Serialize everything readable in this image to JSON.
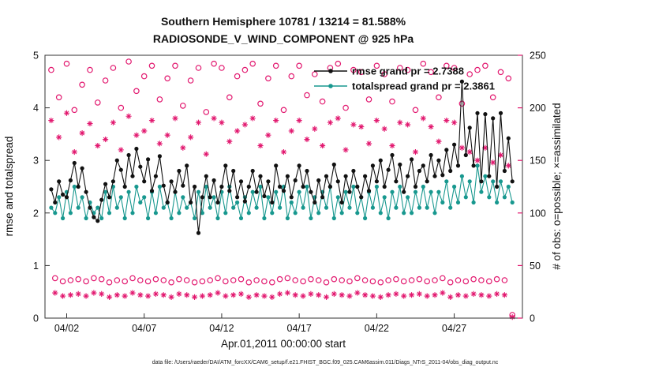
{
  "chart_data": {
    "type": "line",
    "title": "Southern Hemisphere 10781 / 13214 = 81.588%",
    "subtitle": "RADIOSONDE_V_WIND_COMPONENT @ 925 hPa",
    "xlabel": "Apr.01,2011 00:00:00 start",
    "ylabel": "rmse and totalspread",
    "y2label": "# of obs: o=possible; ×=assimilated",
    "caption": "data file: /Users/raeder/DAI/ATM_forcXX/CAM6_setup/f.e21.FHIST_BGC.f09_025.CAM6assim.011/Diags_NTrS_2011-04/obs_diag_output.nc",
    "xlim": [
      -0.4,
      30.4
    ],
    "ylim": [
      0,
      5
    ],
    "y2lim": [
      0,
      250
    ],
    "xticks": [
      1,
      6,
      11,
      16,
      21,
      26
    ],
    "xtick_labels": [
      "04/02",
      "04/07",
      "04/12",
      "04/17",
      "04/22",
      "04/27"
    ],
    "yticks": [
      0,
      1,
      2,
      3,
      4,
      5
    ],
    "ytick_labels": [
      "0",
      "1",
      "2",
      "3",
      "4",
      "5"
    ],
    "y2ticks": [
      0,
      50,
      100,
      150,
      200,
      250
    ],
    "y2tick_labels": [
      "0",
      "50",
      "100",
      "150",
      "200",
      "250"
    ],
    "dt_days": 0.25,
    "colors": {
      "rmse": "#111111",
      "totalspread": "#18988f",
      "obs": "#e2186f",
      "legend_text": "#1616d8",
      "box": "#333333"
    },
    "legend": {
      "entries": [
        {
          "label": "rmse grand pr = 2.7388",
          "series": 0
        },
        {
          "label": "totalspread grand pr = 2.3861",
          "series": 1
        }
      ]
    },
    "series": [
      {
        "name": "rmse",
        "marker": "line-dot",
        "axis": "left",
        "color": "#111111",
        "values": [
          2.45,
          2.2,
          2.6,
          2.35,
          2.3,
          2.62,
          2.95,
          2.5,
          2.85,
          2.4,
          2.1,
          1.92,
          1.85,
          2.25,
          2.55,
          2.3,
          2.6,
          3.0,
          2.82,
          2.5,
          3.1,
          2.7,
          3.22,
          2.88,
          2.6,
          3.02,
          2.42,
          2.7,
          3.08,
          2.52,
          2.2,
          2.6,
          2.4,
          2.8,
          2.52,
          2.9,
          2.2,
          2.5,
          1.62,
          2.3,
          2.7,
          2.3,
          2.62,
          2.2,
          2.5,
          2.9,
          2.42,
          2.8,
          2.3,
          2.6,
          2.22,
          2.5,
          2.8,
          2.4,
          2.7,
          2.32,
          2.6,
          2.2,
          2.9,
          2.5,
          2.42,
          2.7,
          2.3,
          2.62,
          2.9,
          2.5,
          2.8,
          2.4,
          2.2,
          2.62,
          2.3,
          2.7,
          2.5,
          2.92,
          2.6,
          2.2,
          2.7,
          2.4,
          2.8,
          2.5,
          2.3,
          2.7,
          2.42,
          2.9,
          2.6,
          3.0,
          2.5,
          2.82,
          3.1,
          2.6,
          2.92,
          2.4,
          2.7,
          3.02,
          2.5,
          2.8,
          2.9,
          2.6,
          3.1,
          2.7,
          3.0,
          2.72,
          3.2,
          2.8,
          3.3,
          2.9,
          4.5,
          3.1,
          3.62,
          2.9,
          3.9,
          2.6,
          3.88,
          2.7,
          3.8,
          2.5,
          3.9,
          2.8,
          3.42,
          2.6
        ]
      },
      {
        "name": "totalspread",
        "marker": "line-dot",
        "axis": "left",
        "color": "#18988f",
        "values": [
          2.1,
          2.0,
          2.3,
          1.9,
          2.4,
          2.0,
          2.5,
          2.1,
          2.3,
          1.9,
          2.2,
          2.0,
          2.1,
          1.9,
          2.4,
          2.0,
          2.5,
          2.1,
          2.3,
          1.9,
          2.4,
          2.0,
          2.5,
          2.2,
          2.3,
          1.9,
          2.4,
          2.0,
          2.5,
          2.1,
          2.2,
          1.9,
          2.4,
          2.0,
          2.3,
          2.1,
          2.2,
          1.9,
          2.4,
          2.0,
          2.5,
          2.1,
          2.3,
          1.9,
          2.4,
          2.0,
          2.5,
          2.1,
          2.2,
          1.9,
          2.3,
          2.0,
          2.4,
          2.1,
          2.5,
          1.9,
          2.3,
          2.0,
          2.4,
          2.1,
          2.5,
          1.9,
          2.2,
          2.0,
          2.4,
          2.1,
          2.5,
          1.9,
          2.3,
          2.0,
          2.4,
          2.1,
          2.5,
          1.9,
          2.3,
          2.0,
          2.4,
          2.1,
          2.5,
          2.0,
          2.3,
          1.9,
          2.4,
          2.1,
          2.5,
          2.0,
          2.3,
          1.9,
          2.4,
          2.1,
          2.5,
          2.0,
          2.3,
          2.0,
          2.4,
          2.1,
          2.5,
          2.1,
          2.4,
          2.0,
          2.4,
          2.2,
          2.6,
          2.1,
          2.5,
          2.2,
          2.7,
          2.3,
          2.6,
          2.2,
          2.9,
          2.4,
          2.7,
          2.3,
          2.6,
          2.2,
          2.6,
          2.3,
          2.5,
          2.2
        ]
      },
      {
        "name": "possible",
        "marker": "open-circle",
        "axis": "right",
        "color": "#e2186f",
        "values": [
          236,
          38,
          210,
          35,
          242,
          36,
          198,
          37,
          222,
          35,
          236,
          38,
          205,
          37,
          226,
          34,
          238,
          36,
          200,
          35,
          244,
          38,
          216,
          36,
          230,
          35,
          240,
          37,
          208,
          36,
          228,
          34,
          240,
          37,
          202,
          36,
          226,
          34,
          238,
          35,
          196,
          36,
          242,
          38,
          238,
          35,
          210,
          36,
          230,
          37,
          236,
          34,
          242,
          36,
          204,
          35,
          228,
          34,
          240,
          37,
          198,
          38,
          230,
          36,
          240,
          35,
          212,
          37,
          232,
          36,
          206,
          34,
          238,
          37,
          242,
          36,
          200,
          35,
          236,
          38,
          234,
          36,
          208,
          35,
          240,
          34,
          232,
          36,
          206,
          37,
          238,
          35,
          236,
          36,
          198,
          37,
          242,
          35,
          234,
          36,
          210,
          38,
          240,
          34,
          238,
          36,
          204,
          35,
          232,
          37,
          236,
          36,
          240,
          35,
          210,
          37,
          234,
          36,
          228,
          3
        ]
      },
      {
        "name": "assimilated",
        "marker": "asterisk",
        "axis": "right",
        "color": "#e2186f",
        "values": [
          188,
          24,
          172,
          21,
          195,
          22,
          158,
          23,
          176,
          21,
          185,
          24,
          164,
          23,
          170,
          20,
          186,
          22,
          160,
          21,
          192,
          24,
          174,
          22,
          178,
          21,
          188,
          23,
          166,
          22,
          174,
          20,
          190,
          23,
          162,
          22,
          172,
          20,
          186,
          21,
          156,
          22,
          190,
          24,
          186,
          21,
          168,
          22,
          178,
          23,
          184,
          20,
          190,
          22,
          164,
          21,
          174,
          20,
          188,
          23,
          158,
          24,
          178,
          22,
          188,
          21,
          170,
          23,
          180,
          22,
          164,
          20,
          186,
          23,
          190,
          22,
          160,
          21,
          184,
          24,
          182,
          22,
          166,
          21,
          188,
          20,
          180,
          22,
          164,
          23,
          186,
          21,
          184,
          22,
          158,
          23,
          190,
          21,
          182,
          22,
          168,
          24,
          188,
          20,
          186,
          22,
          162,
          21,
          158,
          23,
          150,
          22,
          162,
          21,
          148,
          23,
          155,
          22,
          145,
          1
        ]
      }
    ]
  }
}
